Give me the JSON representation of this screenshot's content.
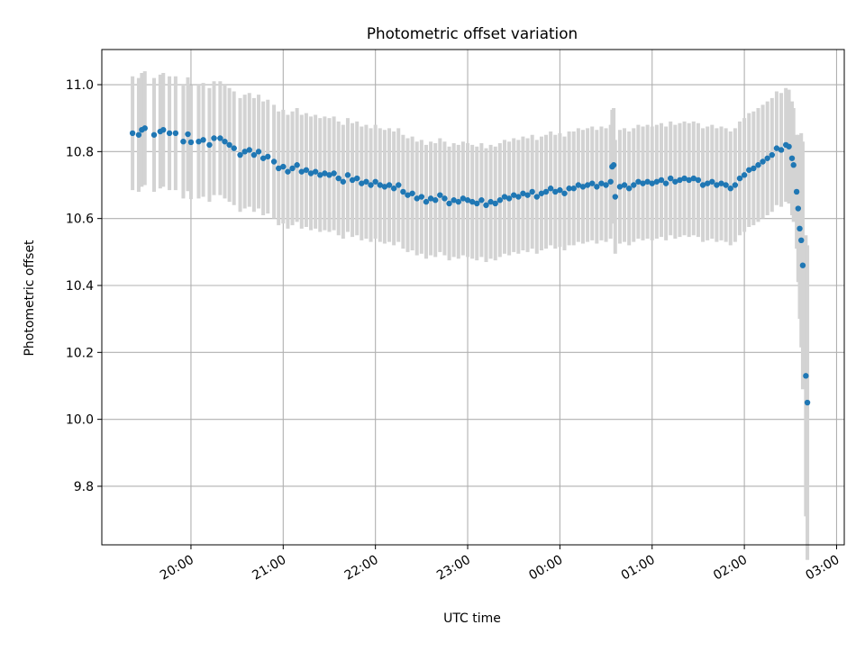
{
  "chart_data": {
    "type": "scatter",
    "title": "Photometric offset variation",
    "xlabel": "UTC time",
    "ylabel": "Photometric offset",
    "x_ticks": [
      "20:00",
      "21:00",
      "22:00",
      "23:00",
      "00:00",
      "01:00",
      "02:00",
      "03:00"
    ],
    "y_ticks": [
      "9.8",
      "10.0",
      "10.2",
      "10.4",
      "10.6",
      "10.8",
      "11.0"
    ],
    "xlim": [
      "19:02",
      "03:05"
    ],
    "ylim": [
      9.625,
      11.105
    ],
    "grid": true,
    "colors": {
      "point": "#1f77b4",
      "errorbar": "#d3d3d3",
      "grid": "#b0b0b0"
    },
    "series": [
      {
        "errorbar_half_width_approx": 0.17,
        "points": [
          {
            "t": "19:22",
            "y": 10.855
          },
          {
            "t": "19:26",
            "y": 10.85
          },
          {
            "t": "19:28",
            "y": 10.865
          },
          {
            "t": "19:30",
            "y": 10.87
          },
          {
            "t": "19:36",
            "y": 10.85
          },
          {
            "t": "19:40",
            "y": 10.86
          },
          {
            "t": "19:42",
            "y": 10.865
          },
          {
            "t": "19:46",
            "y": 10.855
          },
          {
            "t": "19:50",
            "y": 10.855
          },
          {
            "t": "19:55",
            "y": 10.83
          },
          {
            "t": "19:58",
            "y": 10.852
          },
          {
            "t": "20:00",
            "y": 10.828
          },
          {
            "t": "20:05",
            "y": 10.83
          },
          {
            "t": "20:08",
            "y": 10.835
          },
          {
            "t": "20:12",
            "y": 10.82
          },
          {
            "t": "20:15",
            "y": 10.84
          },
          {
            "t": "20:19",
            "y": 10.84
          },
          {
            "t": "20:22",
            "y": 10.83
          },
          {
            "t": "20:25",
            "y": 10.82
          },
          {
            "t": "20:28",
            "y": 10.81
          },
          {
            "t": "20:32",
            "y": 10.79
          },
          {
            "t": "20:35",
            "y": 10.8
          },
          {
            "t": "20:38",
            "y": 10.805
          },
          {
            "t": "20:41",
            "y": 10.79
          },
          {
            "t": "20:44",
            "y": 10.8
          },
          {
            "t": "20:47",
            "y": 10.78
          },
          {
            "t": "20:50",
            "y": 10.785
          },
          {
            "t": "20:54",
            "y": 10.77
          },
          {
            "t": "20:57",
            "y": 10.75
          },
          {
            "t": "21:00",
            "y": 10.755
          },
          {
            "t": "21:03",
            "y": 10.74
          },
          {
            "t": "21:06",
            "y": 10.75
          },
          {
            "t": "21:09",
            "y": 10.76
          },
          {
            "t": "21:12",
            "y": 10.74
          },
          {
            "t": "21:15",
            "y": 10.745
          },
          {
            "t": "21:18",
            "y": 10.735
          },
          {
            "t": "21:21",
            "y": 10.74
          },
          {
            "t": "21:24",
            "y": 10.73
          },
          {
            "t": "21:27",
            "y": 10.735
          },
          {
            "t": "21:30",
            "y": 10.73
          },
          {
            "t": "21:33",
            "y": 10.735
          },
          {
            "t": "21:36",
            "y": 10.72
          },
          {
            "t": "21:39",
            "y": 10.71
          },
          {
            "t": "21:42",
            "y": 10.73
          },
          {
            "t": "21:45",
            "y": 10.715
          },
          {
            "t": "21:48",
            "y": 10.72
          },
          {
            "t": "21:51",
            "y": 10.705
          },
          {
            "t": "21:54",
            "y": 10.71
          },
          {
            "t": "21:57",
            "y": 10.7
          },
          {
            "t": "22:00",
            "y": 10.71
          },
          {
            "t": "22:03",
            "y": 10.7
          },
          {
            "t": "22:06",
            "y": 10.695
          },
          {
            "t": "22:09",
            "y": 10.7
          },
          {
            "t": "22:12",
            "y": 10.69
          },
          {
            "t": "22:15",
            "y": 10.7
          },
          {
            "t": "22:18",
            "y": 10.68
          },
          {
            "t": "22:21",
            "y": 10.67
          },
          {
            "t": "22:24",
            "y": 10.675
          },
          {
            "t": "22:27",
            "y": 10.66
          },
          {
            "t": "22:30",
            "y": 10.665
          },
          {
            "t": "22:33",
            "y": 10.65
          },
          {
            "t": "22:36",
            "y": 10.66
          },
          {
            "t": "22:39",
            "y": 10.655
          },
          {
            "t": "22:42",
            "y": 10.67
          },
          {
            "t": "22:45",
            "y": 10.66
          },
          {
            "t": "22:48",
            "y": 10.645
          },
          {
            "t": "22:51",
            "y": 10.655
          },
          {
            "t": "22:54",
            "y": 10.65
          },
          {
            "t": "22:57",
            "y": 10.66
          },
          {
            "t": "23:00",
            "y": 10.655
          },
          {
            "t": "23:03",
            "y": 10.65
          },
          {
            "t": "23:06",
            "y": 10.645
          },
          {
            "t": "23:09",
            "y": 10.655
          },
          {
            "t": "23:12",
            "y": 10.64
          },
          {
            "t": "23:15",
            "y": 10.65
          },
          {
            "t": "23:18",
            "y": 10.645
          },
          {
            "t": "23:21",
            "y": 10.655
          },
          {
            "t": "23:24",
            "y": 10.665
          },
          {
            "t": "23:27",
            "y": 10.66
          },
          {
            "t": "23:30",
            "y": 10.67
          },
          {
            "t": "23:33",
            "y": 10.665
          },
          {
            "t": "23:36",
            "y": 10.675
          },
          {
            "t": "23:39",
            "y": 10.67
          },
          {
            "t": "23:42",
            "y": 10.68
          },
          {
            "t": "23:45",
            "y": 10.665
          },
          {
            "t": "23:48",
            "y": 10.675
          },
          {
            "t": "23:51",
            "y": 10.68
          },
          {
            "t": "23:54",
            "y": 10.69
          },
          {
            "t": "23:57",
            "y": 10.68
          },
          {
            "t": "00:00",
            "y": 10.685
          },
          {
            "t": "00:03",
            "y": 10.675
          },
          {
            "t": "00:06",
            "y": 10.69
          },
          {
            "t": "00:09",
            "y": 10.69
          },
          {
            "t": "00:12",
            "y": 10.7
          },
          {
            "t": "00:15",
            "y": 10.695
          },
          {
            "t": "00:18",
            "y": 10.7
          },
          {
            "t": "00:21",
            "y": 10.705
          },
          {
            "t": "00:24",
            "y": 10.695
          },
          {
            "t": "00:27",
            "y": 10.705
          },
          {
            "t": "00:30",
            "y": 10.7
          },
          {
            "t": "00:33",
            "y": 10.71
          },
          {
            "t": "00:34",
            "y": 10.755
          },
          {
            "t": "00:35",
            "y": 10.76
          },
          {
            "t": "00:36",
            "y": 10.665
          },
          {
            "t": "00:39",
            "y": 10.695
          },
          {
            "t": "00:42",
            "y": 10.7
          },
          {
            "t": "00:45",
            "y": 10.69
          },
          {
            "t": "00:48",
            "y": 10.7
          },
          {
            "t": "00:51",
            "y": 10.71
          },
          {
            "t": "00:54",
            "y": 10.705
          },
          {
            "t": "00:57",
            "y": 10.71
          },
          {
            "t": "01:00",
            "y": 10.705
          },
          {
            "t": "01:03",
            "y": 10.71
          },
          {
            "t": "01:06",
            "y": 10.715
          },
          {
            "t": "01:09",
            "y": 10.705
          },
          {
            "t": "01:12",
            "y": 10.72
          },
          {
            "t": "01:15",
            "y": 10.71
          },
          {
            "t": "01:18",
            "y": 10.715
          },
          {
            "t": "01:21",
            "y": 10.72
          },
          {
            "t": "01:24",
            "y": 10.715
          },
          {
            "t": "01:27",
            "y": 10.72
          },
          {
            "t": "01:30",
            "y": 10.715
          },
          {
            "t": "01:33",
            "y": 10.7
          },
          {
            "t": "01:36",
            "y": 10.705
          },
          {
            "t": "01:39",
            "y": 10.71
          },
          {
            "t": "01:42",
            "y": 10.7
          },
          {
            "t": "01:45",
            "y": 10.705
          },
          {
            "t": "01:48",
            "y": 10.7
          },
          {
            "t": "01:51",
            "y": 10.69
          },
          {
            "t": "01:54",
            "y": 10.7
          },
          {
            "t": "01:57",
            "y": 10.72
          },
          {
            "t": "02:00",
            "y": 10.73
          },
          {
            "t": "02:03",
            "y": 10.745
          },
          {
            "t": "02:06",
            "y": 10.75
          },
          {
            "t": "02:09",
            "y": 10.76
          },
          {
            "t": "02:12",
            "y": 10.77
          },
          {
            "t": "02:15",
            "y": 10.78
          },
          {
            "t": "02:18",
            "y": 10.79
          },
          {
            "t": "02:21",
            "y": 10.81
          },
          {
            "t": "02:24",
            "y": 10.805
          },
          {
            "t": "02:27",
            "y": 10.82
          },
          {
            "t": "02:29",
            "y": 10.815
          },
          {
            "t": "02:31",
            "y": 10.78
          },
          {
            "t": "02:32",
            "y": 10.76
          },
          {
            "t": "02:34",
            "y": 10.68
          },
          {
            "t": "02:35",
            "y": 10.63
          },
          {
            "t": "02:36",
            "y": 10.57
          },
          {
            "t": "02:37",
            "y": 10.535
          },
          {
            "t": "02:38",
            "y": 10.46
          },
          {
            "t": "02:40",
            "y": 10.13
          },
          {
            "t": "02:41",
            "y": 10.05
          }
        ]
      }
    ]
  }
}
